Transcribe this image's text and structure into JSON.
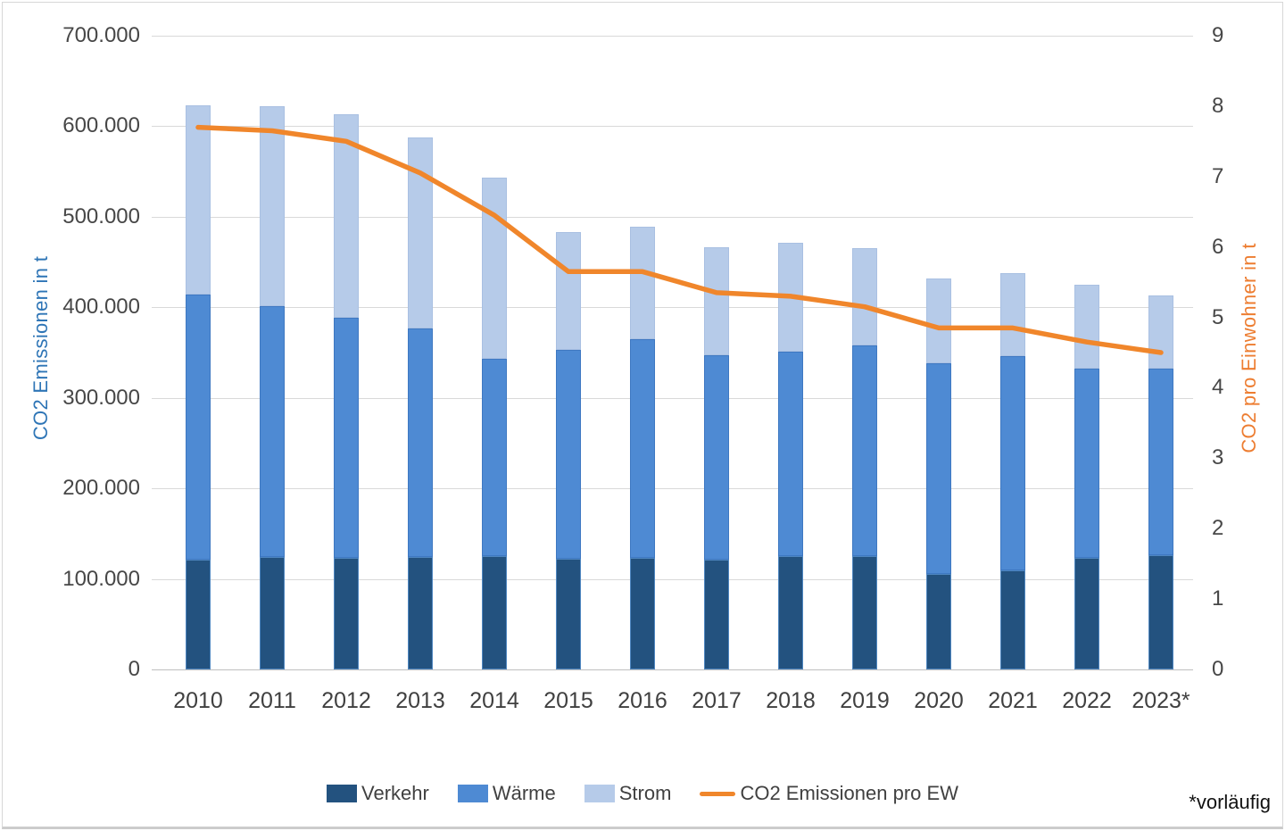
{
  "chart_data": {
    "type": "bar",
    "subtype": "stacked-bars-with-line",
    "categories": [
      "2010",
      "2011",
      "2012",
      "2013",
      "2014",
      "2015",
      "2016",
      "2017",
      "2018",
      "2019",
      "2020",
      "2021",
      "2022",
      "2023*"
    ],
    "series": [
      {
        "name": "Verkehr",
        "type": "bar",
        "color": "#23527F",
        "border": "#4E86C0",
        "values": [
          121000,
          124000,
          123000,
          124000,
          125000,
          122000,
          123000,
          121000,
          125000,
          125000,
          106000,
          109000,
          123000,
          126000
        ]
      },
      {
        "name": "Wärme",
        "type": "bar",
        "color": "#4E8AD3",
        "border": "#3E78C2",
        "values": [
          293000,
          277000,
          265000,
          253000,
          218000,
          231000,
          242000,
          226000,
          226000,
          233000,
          232000,
          237000,
          209000,
          206000
        ]
      },
      {
        "name": "Strom",
        "type": "bar",
        "color": "#B6CBE9",
        "border": "#A9C0E2",
        "values": [
          209000,
          221000,
          225000,
          211000,
          200000,
          130000,
          124000,
          119000,
          120000,
          107000,
          94000,
          92000,
          93000,
          81000
        ]
      },
      {
        "name": "CO2 Emissionen pro EW",
        "type": "line",
        "axis": "right",
        "color": "#F0862B",
        "values": [
          7.7,
          7.65,
          7.5,
          7.05,
          6.45,
          5.65,
          5.65,
          5.35,
          5.3,
          5.15,
          4.85,
          4.85,
          4.65,
          4.5
        ]
      }
    ],
    "left_axis": {
      "title": "CO2 Emissionen in t",
      "color": "#2E75B6",
      "min": 0,
      "max": 700000,
      "ticks": [
        "700.000",
        "600.000",
        "500.000",
        "400.000",
        "300.000",
        "200.000",
        "100.000",
        "0"
      ]
    },
    "right_axis": {
      "title": "CO2  pro Einwohner in t",
      "color": "#ED7D31",
      "min": 0,
      "max": 9,
      "ticks": [
        "9",
        "8",
        "7",
        "6",
        "5",
        "4",
        "3",
        "2",
        "1",
        "0"
      ]
    },
    "grid": true,
    "legend_position": "bottom",
    "footnote": "*vorläufig"
  }
}
